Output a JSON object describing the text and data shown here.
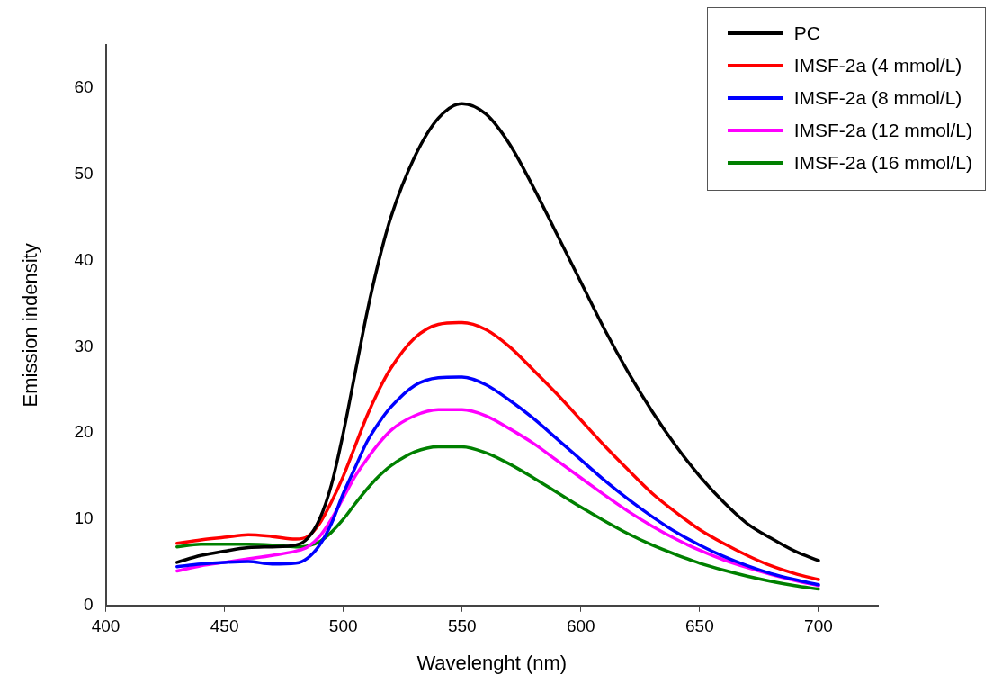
{
  "chart_data": {
    "type": "line",
    "xlabel": "Wavelenght (nm)",
    "ylabel": "Emission indensity",
    "x": [
      430,
      440,
      450,
      460,
      470,
      480,
      485,
      490,
      495,
      500,
      505,
      510,
      515,
      520,
      530,
      540,
      550,
      560,
      570,
      580,
      590,
      600,
      610,
      620,
      630,
      640,
      650,
      660,
      670,
      680,
      690,
      700
    ],
    "series": [
      {
        "name": "PC",
        "color": "#000000",
        "values": [
          5.0,
          5.8,
          6.3,
          6.7,
          6.8,
          7.0,
          7.8,
          10,
          14,
          20,
          27,
          34,
          40,
          45,
          52,
          56.5,
          58.2,
          57,
          53.5,
          48.5,
          43,
          37.5,
          32,
          27,
          22.5,
          18.5,
          15,
          12,
          9.5,
          7.8,
          6.3,
          5.2
        ]
      },
      {
        "name": "IMSF-2a (4 mmol/L)",
        "color": "#ff0000",
        "values": [
          7.2,
          7.6,
          7.9,
          8.2,
          8.0,
          7.7,
          8.0,
          9.5,
          12,
          15,
          18.5,
          22,
          25,
          27.5,
          31,
          32.6,
          32.8,
          32,
          30,
          27.3,
          24.5,
          21.5,
          18.5,
          15.7,
          13,
          10.8,
          8.8,
          7.2,
          5.8,
          4.6,
          3.7,
          3.0
        ]
      },
      {
        "name": "IMSF-2a (8 mmol/L)",
        "color": "#0000ff",
        "values": [
          4.5,
          4.8,
          5.0,
          5.1,
          4.8,
          4.9,
          5.5,
          7,
          9.5,
          13,
          16,
          19,
          21.2,
          23,
          25.5,
          26.4,
          26.5,
          25.6,
          23.8,
          21.7,
          19.3,
          16.9,
          14.5,
          12.3,
          10.3,
          8.5,
          7,
          5.7,
          4.6,
          3.7,
          3.0,
          2.4
        ]
      },
      {
        "name": "IMSF-2a (12 mmol/L)",
        "color": "#ff00ff",
        "values": [
          4.0,
          4.6,
          5.0,
          5.4,
          5.8,
          6.3,
          6.8,
          8,
          10,
          12.5,
          15,
          17,
          18.8,
          20.3,
          22,
          22.7,
          22.7,
          22,
          20.5,
          18.8,
          16.8,
          14.8,
          12.8,
          10.9,
          9.2,
          7.7,
          6.4,
          5.3,
          4.4,
          3.6,
          2.9,
          2.3
        ]
      },
      {
        "name": "IMSF-2a (16 mmol/L)",
        "color": "#008000",
        "values": [
          6.8,
          7.1,
          7.1,
          7.1,
          7.0,
          6.8,
          6.9,
          7.4,
          8.5,
          10,
          11.8,
          13.5,
          15,
          16.2,
          17.8,
          18.4,
          18.4,
          17.7,
          16.4,
          14.8,
          13.1,
          11.4,
          9.8,
          8.3,
          7,
          5.9,
          4.9,
          4.1,
          3.4,
          2.8,
          2.3,
          1.9
        ]
      }
    ],
    "xlim": [
      400,
      725
    ],
    "xticks": [
      400,
      450,
      500,
      550,
      600,
      650,
      700
    ],
    "ylim": [
      0,
      65
    ],
    "yticks": [
      0,
      10,
      20,
      30,
      40,
      50,
      60
    ],
    "grid": false,
    "legend": "top right",
    "marker": "none",
    "line_style": "solid"
  }
}
